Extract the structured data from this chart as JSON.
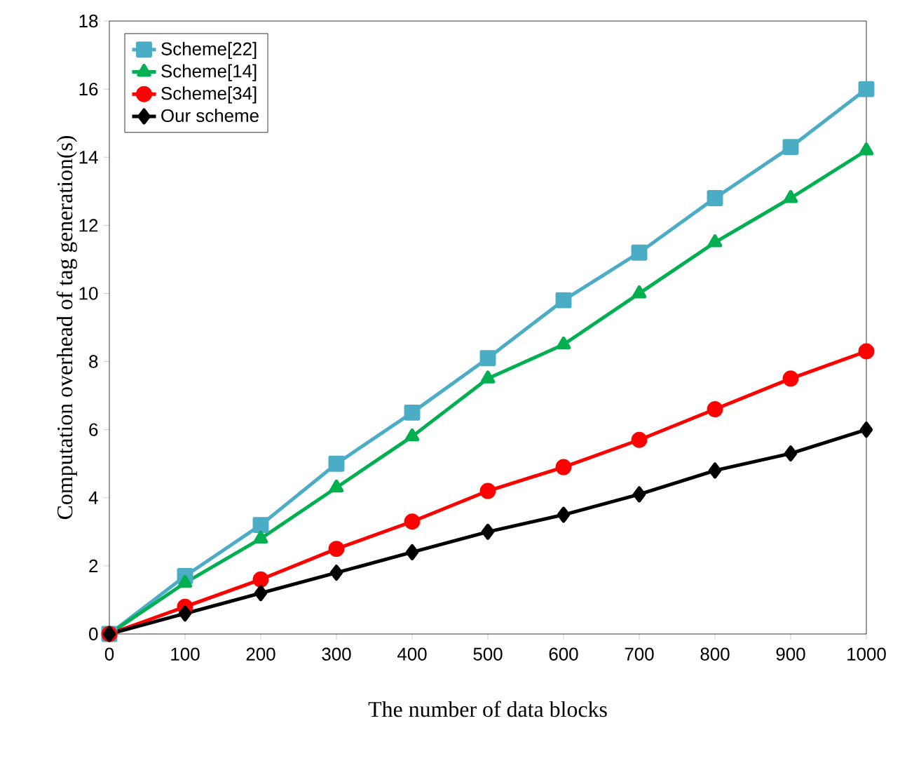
{
  "chart_data": {
    "type": "line",
    "xlabel": "The number of data blocks",
    "ylabel": "Computation overhead of tag generation(s)",
    "x": [
      0,
      100,
      200,
      300,
      400,
      500,
      600,
      700,
      800,
      900,
      1000
    ],
    "series": [
      {
        "name": "Scheme[22]",
        "color": "#4bacc6",
        "marker": "square",
        "values": [
          0,
          1.7,
          3.2,
          5.0,
          6.5,
          8.1,
          9.8,
          11.2,
          12.8,
          14.3,
          16.0
        ]
      },
      {
        "name": "Scheme[14]",
        "color": "#00b050",
        "marker": "triangle",
        "values": [
          0,
          1.5,
          2.8,
          4.3,
          5.8,
          7.5,
          8.5,
          10.0,
          11.5,
          12.8,
          14.2
        ]
      },
      {
        "name": "Scheme[34]",
        "color": "#ff0000",
        "marker": "circle",
        "values": [
          0,
          0.8,
          1.6,
          2.5,
          3.3,
          4.2,
          4.9,
          5.7,
          6.6,
          7.5,
          8.3
        ]
      },
      {
        "name": "Our scheme",
        "color": "#000000",
        "marker": "diamond",
        "values": [
          0,
          0.6,
          1.2,
          1.8,
          2.4,
          3.0,
          3.5,
          4.1,
          4.8,
          5.3,
          6.0
        ]
      }
    ],
    "xlim": [
      0,
      1000
    ],
    "ylim": [
      0,
      18
    ],
    "xticks": [
      0,
      100,
      200,
      300,
      400,
      500,
      600,
      700,
      800,
      900,
      1000
    ],
    "yticks": [
      0,
      2,
      4,
      6,
      8,
      10,
      12,
      14,
      16,
      18
    ],
    "grid": false,
    "legend": "top left",
    "line_style": "solid"
  }
}
